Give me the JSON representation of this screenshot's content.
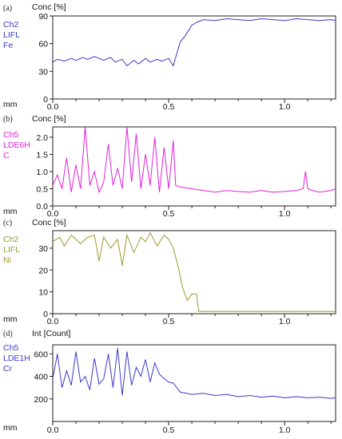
{
  "figure": {
    "panels": [
      {
        "tag": "(a)",
        "channel": [
          "Ch2",
          "LIFL",
          "Fe"
        ],
        "ylabel": "Conc [%]",
        "xlabel": "mm",
        "color": "#3a3acd",
        "yticks": [
          "0",
          "30",
          "60",
          "90"
        ],
        "xticks": [
          "0.0",
          "0.5",
          "1.0"
        ]
      },
      {
        "tag": "(b)",
        "channel": [
          "Ch5",
          "LDE6H",
          "C"
        ],
        "ylabel": "Conc [%]",
        "xlabel": "mm",
        "color": "#e21fd8",
        "yticks": [
          "0.0",
          "0.5",
          "1.0",
          "1.5",
          "2.0"
        ],
        "xticks": [
          "0.0",
          "0.5",
          "1.0"
        ]
      },
      {
        "tag": "(c)",
        "channel": [
          "Ch2",
          "LIFL",
          "Ni"
        ],
        "ylabel": "Conc [%]",
        "xlabel": "mm",
        "color": "#9a9a2e",
        "yticks": [
          "0",
          "10",
          "20",
          "30"
        ],
        "xticks": [
          "0.0",
          "0.5",
          "1.0"
        ]
      },
      {
        "tag": "(d)",
        "channel": [
          "Ch5",
          "LDE1H",
          "Cr"
        ],
        "ylabel": "Int [Count]",
        "xlabel": "mm",
        "color": "#3a3acd",
        "yticks": [
          "200",
          "400",
          "600"
        ],
        "xticks": [
          "0.0",
          "0.5",
          "1.0"
        ]
      }
    ]
  },
  "chart_data": [
    {
      "type": "line",
      "ylabel": "Conc [%]",
      "xlabel": "mm",
      "xlim": [
        0,
        1.22
      ],
      "ylim": [
        0,
        90
      ],
      "grid": false,
      "series": [
        {
          "name": "Fe",
          "x": [
            0,
            0.02,
            0.05,
            0.08,
            0.1,
            0.13,
            0.15,
            0.18,
            0.2,
            0.22,
            0.25,
            0.27,
            0.3,
            0.32,
            0.35,
            0.37,
            0.4,
            0.42,
            0.45,
            0.47,
            0.5,
            0.52,
            0.53,
            0.55,
            0.57,
            0.58,
            0.6,
            0.62,
            0.65,
            0.7,
            0.75,
            0.8,
            0.85,
            0.9,
            0.95,
            1.0,
            1.05,
            1.1,
            1.15,
            1.2,
            1.22
          ],
          "y": [
            40,
            43,
            41,
            44,
            42,
            45,
            43,
            46,
            44,
            42,
            45,
            40,
            43,
            36,
            42,
            38,
            44,
            40,
            43,
            41,
            44,
            36,
            45,
            62,
            68,
            72,
            80,
            83,
            86,
            85,
            87,
            86,
            85,
            87,
            86,
            85,
            87,
            86,
            85,
            86,
            85
          ]
        }
      ]
    },
    {
      "type": "line",
      "ylabel": "Conc [%]",
      "xlabel": "mm",
      "xlim": [
        0,
        1.22
      ],
      "ylim": [
        0,
        2.3
      ],
      "grid": false,
      "series": [
        {
          "name": "C",
          "x": [
            0,
            0.02,
            0.04,
            0.06,
            0.08,
            0.1,
            0.12,
            0.14,
            0.16,
            0.18,
            0.2,
            0.22,
            0.24,
            0.26,
            0.28,
            0.3,
            0.32,
            0.34,
            0.36,
            0.38,
            0.4,
            0.42,
            0.44,
            0.46,
            0.48,
            0.5,
            0.52,
            0.53,
            0.55,
            0.6,
            0.65,
            0.7,
            0.75,
            0.8,
            0.85,
            0.9,
            0.95,
            1.0,
            1.05,
            1.08,
            1.09,
            1.1,
            1.12,
            1.15,
            1.2,
            1.22
          ],
          "y": [
            0.6,
            0.9,
            0.5,
            1.4,
            0.4,
            1.2,
            0.5,
            2.3,
            0.6,
            1.0,
            0.4,
            0.7,
            1.8,
            0.6,
            1.1,
            0.5,
            2.3,
            0.7,
            2.1,
            0.5,
            1.5,
            0.6,
            2.0,
            0.4,
            1.7,
            0.5,
            1.9,
            0.6,
            0.55,
            0.5,
            0.45,
            0.4,
            0.45,
            0.42,
            0.4,
            0.45,
            0.4,
            0.42,
            0.45,
            0.5,
            1.0,
            0.5,
            0.45,
            0.4,
            0.45,
            0.5
          ]
        }
      ]
    },
    {
      "type": "line",
      "ylabel": "Conc [%]",
      "xlabel": "mm",
      "xlim": [
        0,
        1.22
      ],
      "ylim": [
        0,
        38
      ],
      "grid": false,
      "series": [
        {
          "name": "Ni",
          "x": [
            0,
            0.03,
            0.05,
            0.08,
            0.1,
            0.12,
            0.15,
            0.18,
            0.2,
            0.22,
            0.25,
            0.28,
            0.3,
            0.32,
            0.35,
            0.38,
            0.4,
            0.42,
            0.45,
            0.48,
            0.5,
            0.52,
            0.54,
            0.56,
            0.58,
            0.6,
            0.62,
            0.63,
            0.7,
            0.8,
            0.9,
            1.0,
            1.1,
            1.22
          ],
          "y": [
            33,
            35,
            31,
            36,
            34,
            32,
            35,
            36,
            24,
            35,
            30,
            34,
            22,
            36,
            28,
            35,
            33,
            37,
            31,
            36,
            34,
            30,
            22,
            12,
            6,
            9,
            9,
            1,
            1,
            1,
            1,
            1,
            1,
            1
          ]
        }
      ]
    },
    {
      "type": "line",
      "ylabel": "Int [Count]",
      "xlabel": "mm",
      "xlim": [
        0,
        1.22
      ],
      "ylim": [
        0,
        680
      ],
      "grid": false,
      "series": [
        {
          "name": "Cr",
          "x": [
            0,
            0.02,
            0.04,
            0.06,
            0.08,
            0.1,
            0.12,
            0.14,
            0.16,
            0.18,
            0.2,
            0.22,
            0.24,
            0.26,
            0.28,
            0.3,
            0.32,
            0.34,
            0.36,
            0.38,
            0.4,
            0.42,
            0.44,
            0.46,
            0.48,
            0.5,
            0.52,
            0.55,
            0.6,
            0.65,
            0.7,
            0.75,
            0.8,
            0.85,
            0.9,
            0.95,
            1.0,
            1.05,
            1.1,
            1.15,
            1.2,
            1.22
          ],
          "y": [
            380,
            600,
            300,
            450,
            320,
            620,
            350,
            400,
            280,
            560,
            330,
            380,
            600,
            300,
            650,
            230,
            620,
            320,
            480,
            400,
            550,
            350,
            520,
            420,
            380,
            350,
            340,
            260,
            240,
            250,
            230,
            240,
            220,
            230,
            215,
            225,
            210,
            220,
            210,
            215,
            205,
            210
          ]
        }
      ]
    }
  ]
}
